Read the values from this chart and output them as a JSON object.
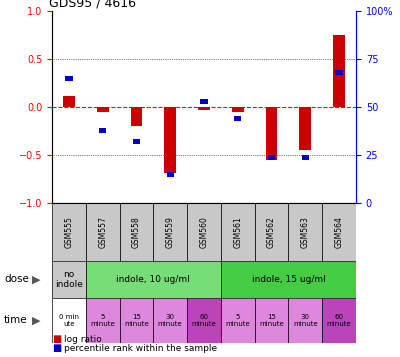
{
  "title": "GDS95 / 4616",
  "samples": [
    "GSM555",
    "GSM557",
    "GSM558",
    "GSM559",
    "GSM560",
    "GSM561",
    "GSM562",
    "GSM563",
    "GSM564"
  ],
  "log_ratio": [
    0.12,
    -0.05,
    -0.2,
    -0.68,
    -0.03,
    -0.05,
    -0.55,
    -0.45,
    0.75
  ],
  "percentile": [
    65,
    38,
    32,
    15,
    53,
    44,
    24,
    24,
    68
  ],
  "bar_color": "#cc0000",
  "dot_color": "#0000cc",
  "ylim_left": [
    -1,
    1
  ],
  "ylim_right": [
    0,
    100
  ],
  "yticks_left": [
    -1,
    -0.5,
    0,
    0.5,
    1
  ],
  "yticks_right": [
    0,
    25,
    50,
    75,
    100
  ],
  "time_labels": [
    "0 min\nute",
    "5\nminute",
    "15\nminute",
    "30\nminute",
    "60\nminute",
    "5\nminute",
    "15\nminute",
    "30\nminute",
    "60\nminute"
  ],
  "sample_header_color": "#c8c8c8",
  "dose_spans": [
    [
      0,
      1,
      "no\nindole",
      "#c8c8c8"
    ],
    [
      1,
      5,
      "indole, 10 ug/ml",
      "#77dd77"
    ],
    [
      5,
      9,
      "indole, 15 ug/ml",
      "#44cc44"
    ]
  ],
  "time_colors": [
    "#ffffff",
    "#dd88dd",
    "#dd88dd",
    "#dd88dd",
    "#bb44bb",
    "#dd88dd",
    "#dd88dd",
    "#dd88dd",
    "#bb44bb"
  ],
  "legend_red": "log ratio",
  "legend_blue": "percentile rank within the sample",
  "bar_width": 0.35,
  "left_label_color": "#555555"
}
